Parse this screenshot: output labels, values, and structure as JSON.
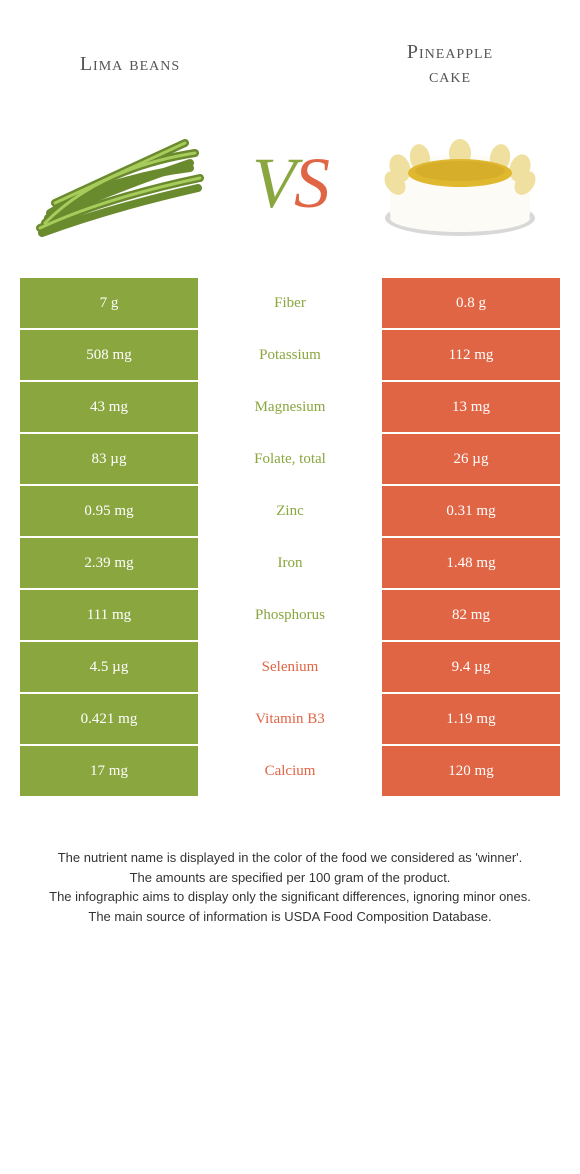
{
  "header": {
    "left_title": "Lima beans",
    "right_title_line1": "Pineapple",
    "right_title_line2": "cake"
  },
  "vs": {
    "v": "V",
    "s": "S"
  },
  "colors": {
    "green": "#8aa63f",
    "orange": "#e06544",
    "background": "#ffffff"
  },
  "table": {
    "rows": [
      {
        "left": "7 g",
        "label": "Fiber",
        "right": "0.8 g",
        "winner": "green"
      },
      {
        "left": "508 mg",
        "label": "Potassium",
        "right": "112 mg",
        "winner": "green"
      },
      {
        "left": "43 mg",
        "label": "Magnesium",
        "right": "13 mg",
        "winner": "green"
      },
      {
        "left": "83 µg",
        "label": "Folate, total",
        "right": "26 µg",
        "winner": "green"
      },
      {
        "left": "0.95 mg",
        "label": "Zinc",
        "right": "0.31 mg",
        "winner": "green"
      },
      {
        "left": "2.39 mg",
        "label": "Iron",
        "right": "1.48 mg",
        "winner": "green"
      },
      {
        "left": "111 mg",
        "label": "Phosphorus",
        "right": "82 mg",
        "winner": "green"
      },
      {
        "left": "4.5 µg",
        "label": "Selenium",
        "right": "9.4 µg",
        "winner": "orange"
      },
      {
        "left": "0.421 mg",
        "label": "Vitamin B3",
        "right": "1.19 mg",
        "winner": "orange"
      },
      {
        "left": "17 mg",
        "label": "Calcium",
        "right": "120 mg",
        "winner": "orange"
      }
    ]
  },
  "footer": {
    "line1": "The nutrient name is displayed in the color of the food we considered as 'winner'.",
    "line2": "The amounts are specified per 100 gram of the product.",
    "line3": "The infographic aims to display only the significant differences, ignoring minor ones.",
    "line4": "The main source of information is USDA Food Composition Database."
  }
}
